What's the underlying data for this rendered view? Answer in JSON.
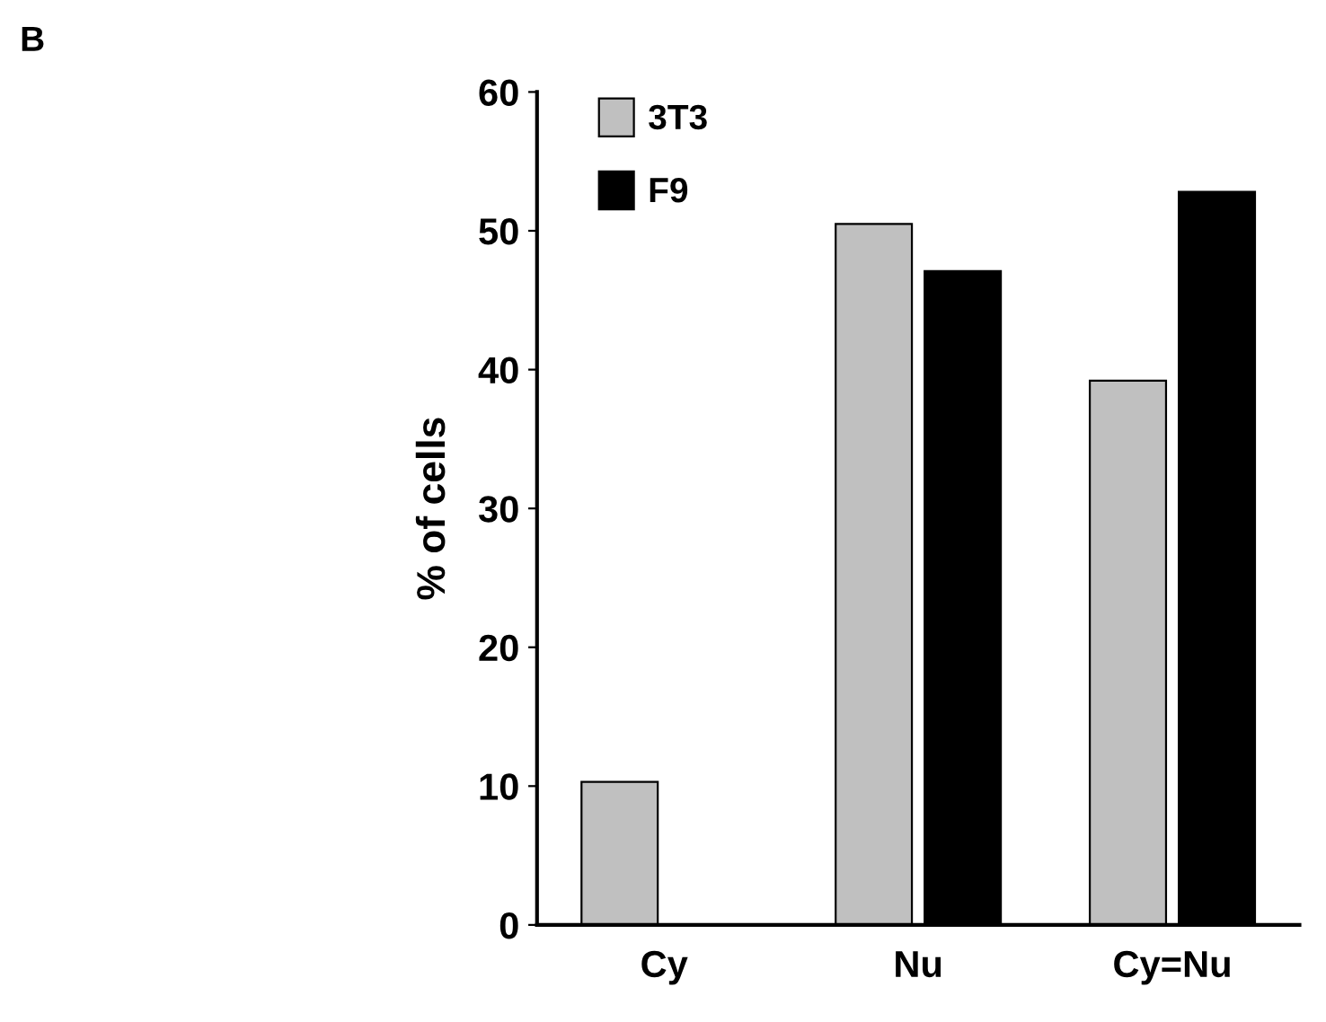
{
  "chart_data": {
    "type": "bar",
    "ylabel": "% of cells",
    "categories": [
      "Cy",
      "Nu",
      "Cy=Nu"
    ],
    "series": [
      {
        "name": "3T3",
        "color": "#c0c0c0",
        "values": [
          10.3,
          50.5,
          39.2
        ]
      },
      {
        "name": "F9",
        "color": "#000000",
        "values": [
          0,
          47.1,
          52.8
        ]
      }
    ],
    "ylim": [
      0,
      60
    ],
    "yticks": [
      0,
      10,
      20,
      30,
      40,
      50,
      60
    ],
    "grid": false,
    "legend": "top left",
    "annotations": [
      "B"
    ]
  }
}
